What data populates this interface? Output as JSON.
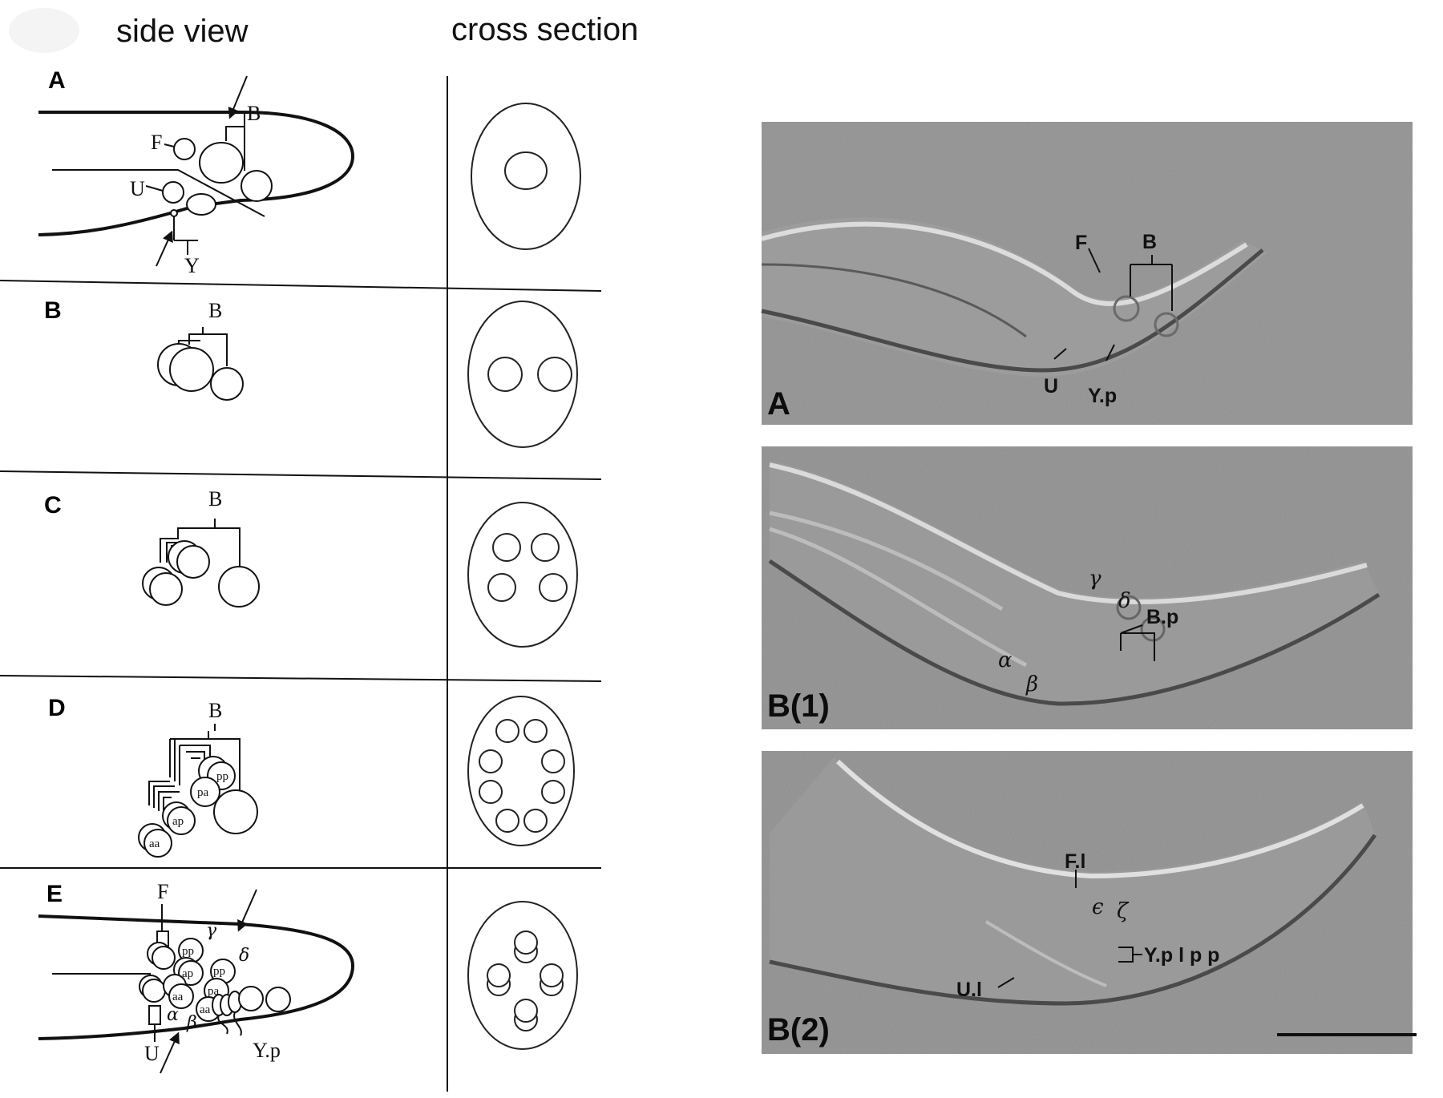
{
  "headers": {
    "side_view": "side view",
    "cross_section": "cross section"
  },
  "panels": [
    {
      "letter": "A",
      "labels": {
        "top": "B",
        "f": "F",
        "u": "U",
        "y": "Y"
      }
    },
    {
      "letter": "B",
      "labels": {
        "top": "B"
      }
    },
    {
      "letter": "C",
      "labels": {
        "top": "B"
      }
    },
    {
      "letter": "D",
      "labels": {
        "top": "B",
        "aa": "aa",
        "ap": "ap",
        "pa": "pa",
        "pp": "pp"
      }
    },
    {
      "letter": "E",
      "labels": {
        "f": "F",
        "u": "U",
        "yp": "Y.p",
        "gamma": "γ",
        "delta": "δ",
        "alpha": "α",
        "beta": "β",
        "pp": "pp",
        "ap": "ap",
        "pa": "pa",
        "aa": "aa",
        "aa2": "aa",
        "pp2": "pp"
      }
    }
  ],
  "micrographs": [
    {
      "panel": "A",
      "labels": {
        "f": "F",
        "b": "B",
        "u": "U",
        "yp": "Y.p"
      }
    },
    {
      "panel": "B(1)",
      "labels": {
        "gamma": "γ",
        "delta": "δ",
        "bp": "B.p",
        "alpha": "α",
        "beta": "β"
      }
    },
    {
      "panel": "B(2)",
      "labels": {
        "fl": "F.l",
        "epsilon": "ϵ",
        "zeta": "ζ",
        "ypl": "Y.p l p p",
        "ul": "U.l"
      }
    }
  ],
  "colors": {
    "ink": "#111111",
    "micrograph_bg": "#8c8c8c"
  }
}
